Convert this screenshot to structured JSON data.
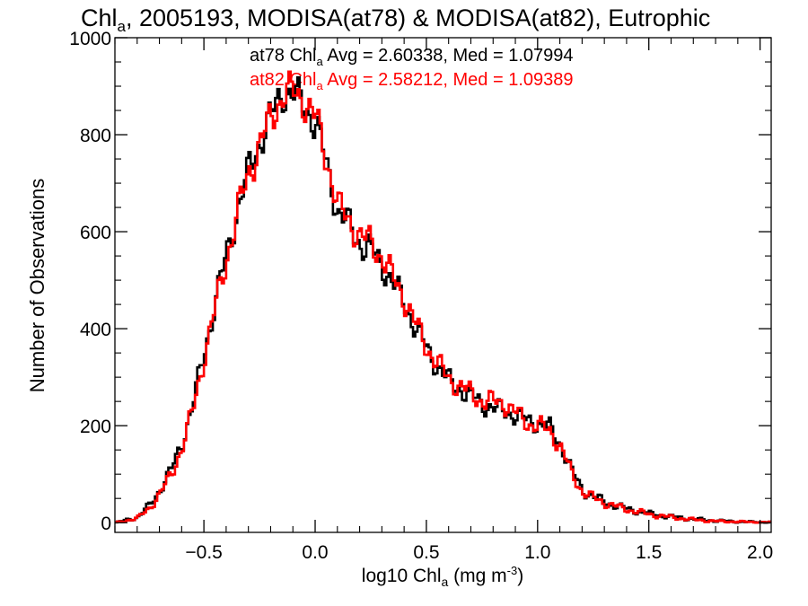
{
  "chart_data": {
    "type": "line",
    "title": {
      "chl": "Chl",
      "sub": "a",
      "rest": ", 2005193, MODISA(at78) & MODISA(at82), Eutrophic"
    },
    "xlabel": {
      "pre": "log10 Chl",
      "sub": "a",
      "mid": " (mg m",
      "sup": "-3",
      "post": ")"
    },
    "ylabel": "Number of Observations",
    "xlim": [
      -0.9,
      2.05
    ],
    "ylim": [
      -20,
      1000
    ],
    "xticks": [
      -0.5,
      0.0,
      0.5,
      1.0,
      1.5,
      2.0
    ],
    "xtick_labels": [
      "−0.5",
      "0.0",
      "0.5",
      "1.0",
      "1.5",
      "2.0"
    ],
    "yticks": [
      0,
      200,
      400,
      600,
      800,
      1000
    ],
    "ytick_labels": [
      "0",
      "200",
      "400",
      "600",
      "800",
      "1000"
    ],
    "annotations": [
      {
        "pre": "at78 Chl",
        "sub": "a",
        "post": " Avg = 2.60338, Med = 1.07994",
        "color": "#000000"
      },
      {
        "pre": "at82 Chl",
        "sub": "a",
        "post": " Avg = 2.58212, Med = 1.09389",
        "color": "#ff0000"
      }
    ],
    "style": "step-histogram",
    "grid": false,
    "series": [
      {
        "color": "#000000",
        "x": [
          -0.9,
          -0.8,
          -0.75,
          -0.7,
          -0.65,
          -0.6,
          -0.55,
          -0.5,
          -0.45,
          -0.4,
          -0.35,
          -0.3,
          -0.25,
          -0.2,
          -0.15,
          -0.1,
          -0.05,
          0.0,
          0.05,
          0.1,
          0.15,
          0.2,
          0.25,
          0.3,
          0.35,
          0.4,
          0.45,
          0.5,
          0.55,
          0.6,
          0.65,
          0.7,
          0.75,
          0.8,
          0.85,
          0.9,
          0.95,
          1.0,
          1.05,
          1.1,
          1.15,
          1.2,
          1.3,
          1.4,
          1.5,
          1.6,
          1.7,
          1.8,
          1.9,
          2.0
        ],
        "values": [
          0,
          12,
          35,
          70,
          110,
          170,
          250,
          360,
          460,
          560,
          650,
          730,
          790,
          840,
          890,
          880,
          860,
          820,
          730,
          640,
          610,
          575,
          560,
          530,
          490,
          450,
          400,
          355,
          320,
          290,
          275,
          260,
          245,
          235,
          230,
          220,
          210,
          205,
          195,
          160,
          105,
          65,
          42,
          28,
          18,
          12,
          7,
          4,
          2,
          1
        ]
      },
      {
        "color": "#ff0000",
        "x": [
          -0.9,
          -0.8,
          -0.75,
          -0.7,
          -0.65,
          -0.6,
          -0.55,
          -0.5,
          -0.45,
          -0.4,
          -0.35,
          -0.3,
          -0.25,
          -0.2,
          -0.15,
          -0.1,
          -0.05,
          0.0,
          0.05,
          0.1,
          0.15,
          0.2,
          0.25,
          0.3,
          0.35,
          0.4,
          0.45,
          0.5,
          0.55,
          0.6,
          0.65,
          0.7,
          0.75,
          0.8,
          0.85,
          0.9,
          0.95,
          1.0,
          1.05,
          1.1,
          1.15,
          1.2,
          1.3,
          1.4,
          1.5,
          1.6,
          1.7,
          1.8,
          1.9,
          2.0
        ],
        "values": [
          0,
          10,
          30,
          62,
          100,
          160,
          240,
          350,
          450,
          550,
          645,
          725,
          785,
          835,
          885,
          885,
          870,
          830,
          745,
          650,
          620,
          590,
          575,
          545,
          500,
          460,
          405,
          360,
          325,
          295,
          280,
          265,
          250,
          250,
          245,
          225,
          205,
          200,
          190,
          155,
          100,
          62,
          40,
          27,
          17,
          11,
          6,
          3,
          2,
          1
        ]
      }
    ]
  }
}
